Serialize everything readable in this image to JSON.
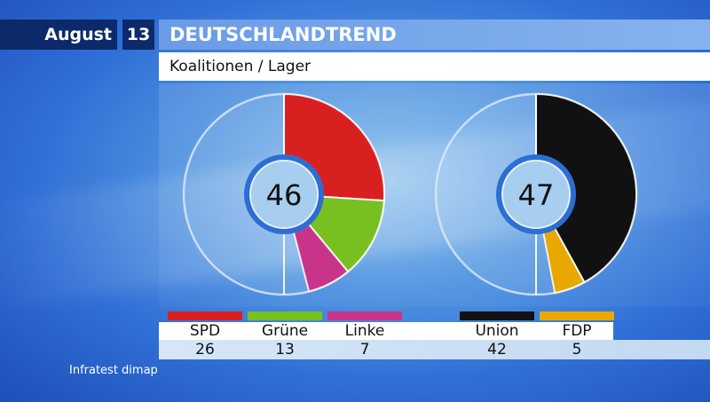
{
  "header": {
    "month": "August",
    "day": "13",
    "title": "DEUTSCHLANDTREND",
    "subtitle": "Koalitionen / Lager"
  },
  "source": "Infratest dimap",
  "chart_data": [
    {
      "type": "pie",
      "center_label": "46",
      "series": [
        {
          "name": "SPD",
          "value": 26,
          "color": "#d92020"
        },
        {
          "name": "Grüne",
          "value": 13,
          "color": "#78c020"
        },
        {
          "name": "Linke",
          "value": 7,
          "color": "#c8348a"
        }
      ],
      "scale_total": 100
    },
    {
      "type": "pie",
      "center_label": "47",
      "series": [
        {
          "name": "Union",
          "value": 42,
          "color": "#111111"
        },
        {
          "name": "FDP",
          "value": 5,
          "color": "#e8a800"
        }
      ],
      "scale_total": 100
    }
  ]
}
